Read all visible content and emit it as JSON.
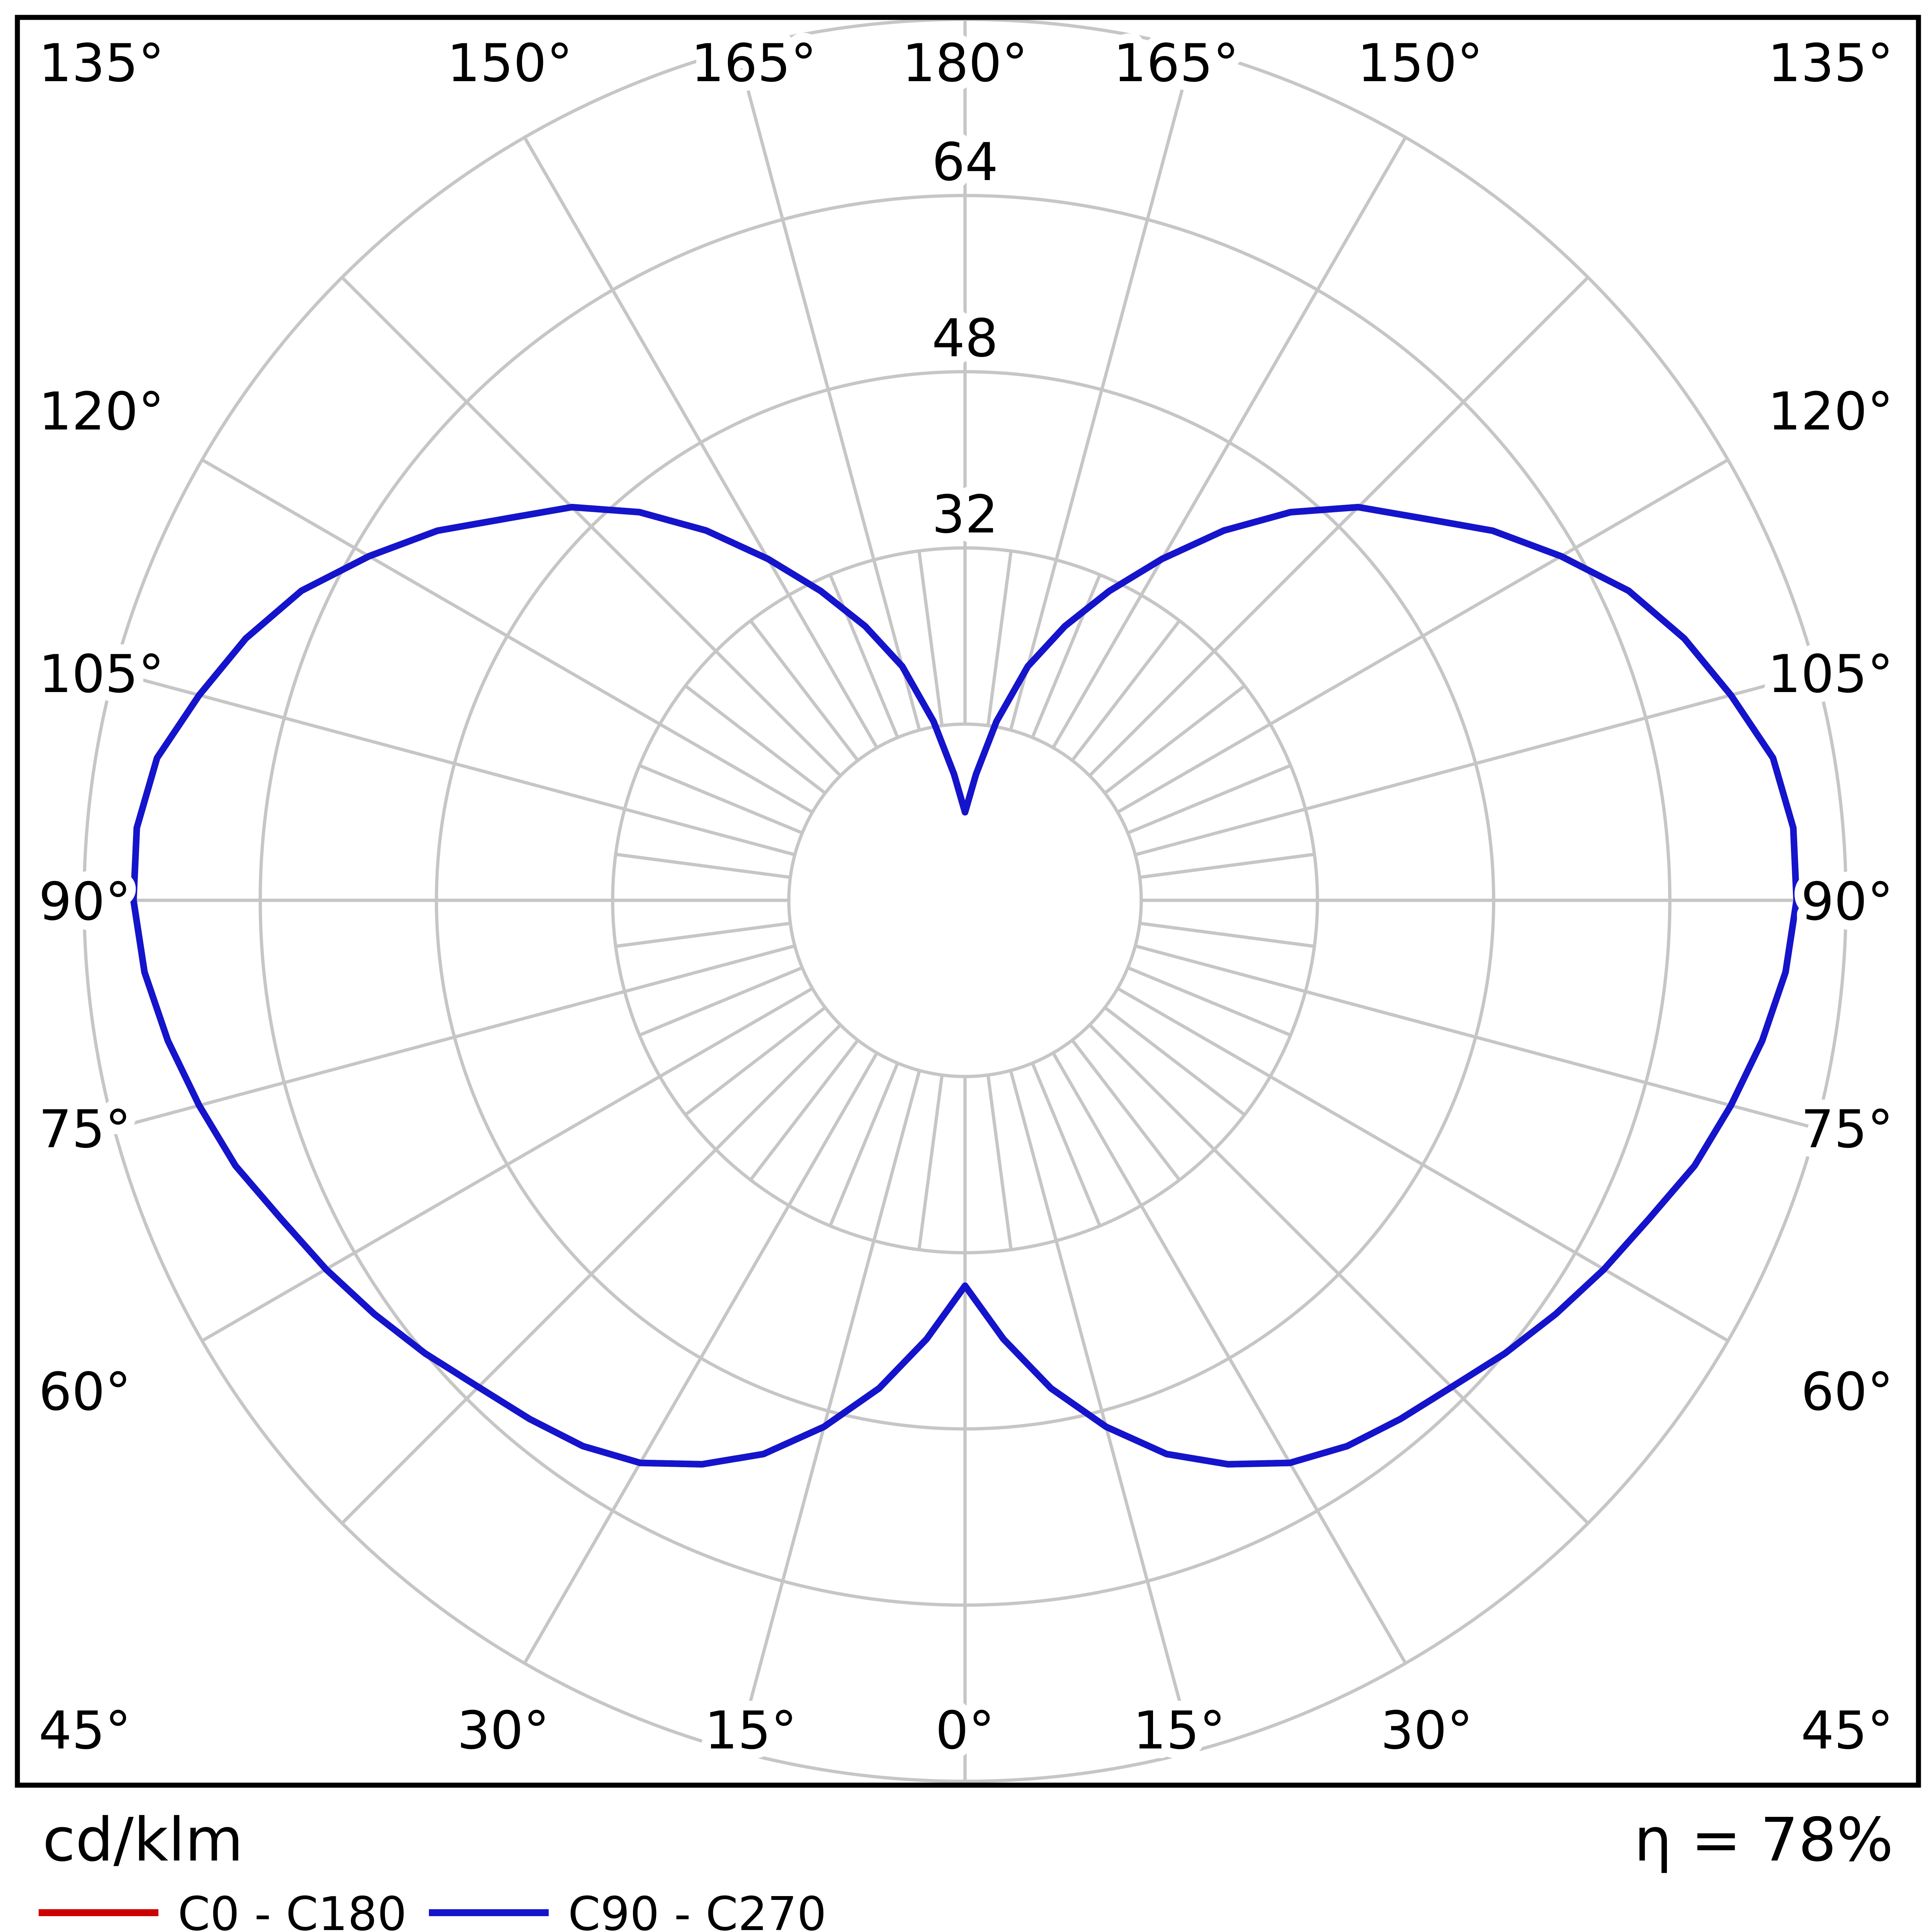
{
  "chart_data": {
    "type": "line",
    "variant": "polar_photometric_intensity_distribution",
    "title": "",
    "units_label": "cd/klm",
    "efficiency_label": "η = 78%",
    "grid_color": "#c6c6c6",
    "radial_axis": {
      "unit": "cd/klm",
      "ring_values": [
        16,
        32,
        48,
        64,
        80
      ],
      "labeled_rings": [
        32,
        48,
        64
      ],
      "max": 80
    },
    "angular_axis": {
      "zero_position": "bottom",
      "major_step_deg": 15,
      "minor_step_deg": 7.5,
      "labels_deg": [
        0,
        15,
        30,
        45,
        60,
        75,
        90,
        105,
        120,
        135,
        150,
        165,
        180
      ],
      "labels_mirrored_both_sides": true
    },
    "legend": [
      {
        "label": "C0 - C180",
        "color": "#cc0000"
      },
      {
        "label": "C90 - C270",
        "color": "#1414cc"
      }
    ],
    "series": [
      {
        "name": "C0 - C180",
        "color": "#cc0000",
        "angles_deg": [
          0,
          5,
          10,
          15,
          20,
          25,
          30,
          35,
          40,
          45,
          50,
          55,
          60,
          65,
          70,
          75,
          80,
          85,
          90,
          95,
          100,
          105,
          110,
          115,
          120,
          125,
          130,
          135,
          140,
          145,
          150,
          155,
          160,
          165,
          170,
          175,
          180
        ],
        "values_cd_per_klm": [
          35,
          40,
          45,
          49.5,
          53.5,
          56.5,
          59,
          60.5,
          61.5,
          62.5,
          64,
          65.5,
          67,
          68.5,
          70.5,
          72,
          73.5,
          74.8,
          75.5,
          75.5,
          74.5,
          72,
          69.5,
          66.5,
          62.5,
          58.5,
          54,
          50.5,
          46,
          41,
          35.8,
          31,
          26.5,
          22,
          16.5,
          11.5,
          8
        ]
      },
      {
        "name": "C90 - C270",
        "color": "#1414cc",
        "angles_deg": [
          0,
          5,
          10,
          15,
          20,
          25,
          30,
          35,
          40,
          45,
          50,
          55,
          60,
          65,
          70,
          75,
          80,
          85,
          90,
          95,
          100,
          105,
          110,
          115,
          120,
          125,
          130,
          135,
          140,
          145,
          150,
          155,
          160,
          165,
          170,
          175,
          180
        ],
        "values_cd_per_klm": [
          35,
          40,
          45,
          49.5,
          53.5,
          56.5,
          59,
          60.5,
          61.5,
          62.5,
          64,
          65.5,
          67,
          68.5,
          70.5,
          72,
          73.5,
          74.8,
          75.5,
          75.5,
          74.5,
          72,
          69.5,
          66.5,
          62.5,
          58.5,
          54,
          50.5,
          46,
          41,
          35.8,
          31,
          26.5,
          22,
          16.5,
          11.5,
          8
        ]
      }
    ]
  }
}
